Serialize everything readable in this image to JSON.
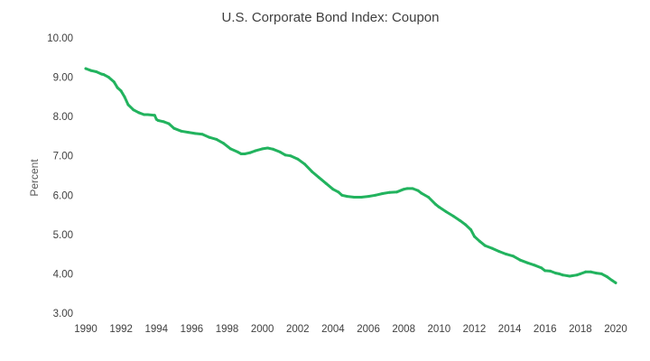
{
  "chart_data": {
    "type": "line",
    "title": "U.S. Corporate Bond Index: Coupon",
    "xlabel": "",
    "ylabel": "Percent",
    "xlim": [
      1990,
      2020
    ],
    "ylim": [
      3.0,
      10.0
    ],
    "x_ticks": [
      "1990",
      "1992",
      "1994",
      "1996",
      "1998",
      "2000",
      "2002",
      "2004",
      "2006",
      "2008",
      "2010",
      "2012",
      "2014",
      "2016",
      "2018",
      "2020"
    ],
    "y_ticks": [
      "3.00",
      "4.00",
      "5.00",
      "6.00",
      "7.00",
      "8.00",
      "9.00",
      "10.00"
    ],
    "grid": false,
    "legend": "none",
    "line_color": "#22b35e",
    "series": [
      {
        "x": [
          1990.0,
          1990.3,
          1990.6,
          1990.9,
          1991.0,
          1991.3,
          1991.6,
          1991.8,
          1992.0,
          1992.2,
          1992.4,
          1992.7,
          1993.0,
          1993.3,
          1993.5,
          1993.9,
          1994.0,
          1994.1,
          1994.4,
          1994.7,
          1995.0,
          1995.4,
          1995.8,
          1996.2,
          1996.6,
          1997.0,
          1997.4,
          1997.8,
          1998.2,
          1998.6,
          1998.8,
          1999.0,
          1999.3,
          1999.6,
          2000.0,
          2000.3,
          2000.6,
          2001.0,
          2001.3,
          2001.6,
          2002.0,
          2002.4,
          2002.8,
          2003.2,
          2003.6,
          2004.0,
          2004.3,
          2004.5,
          2004.8,
          2005.2,
          2005.6,
          2006.0,
          2006.4,
          2006.8,
          2007.2,
          2007.6,
          2008.0,
          2008.2,
          2008.5,
          2008.8,
          2009.0,
          2009.4,
          2009.8,
          2010.0,
          2010.4,
          2010.8,
          2011.2,
          2011.5,
          2011.8,
          2012.0,
          2012.3,
          2012.6,
          2013.0,
          2013.4,
          2013.8,
          2014.2,
          2014.6,
          2015.0,
          2015.4,
          2015.8,
          2016.0,
          2016.3,
          2016.6,
          2016.8,
          2017.0,
          2017.4,
          2017.8,
          2018.0,
          2018.3,
          2018.6,
          2018.9,
          2019.2,
          2019.5,
          2019.8,
          2020.0
        ],
        "y": [
          9.22,
          9.17,
          9.14,
          9.08,
          9.07,
          9.0,
          8.88,
          8.73,
          8.65,
          8.5,
          8.3,
          8.17,
          8.1,
          8.05,
          8.05,
          8.03,
          7.93,
          7.9,
          7.87,
          7.82,
          7.7,
          7.63,
          7.6,
          7.57,
          7.55,
          7.47,
          7.42,
          7.32,
          7.18,
          7.1,
          7.05,
          7.05,
          7.08,
          7.13,
          7.18,
          7.2,
          7.17,
          7.1,
          7.02,
          7.0,
          6.92,
          6.79,
          6.6,
          6.45,
          6.3,
          6.15,
          6.08,
          6.0,
          5.97,
          5.95,
          5.95,
          5.97,
          6.0,
          6.04,
          6.07,
          6.08,
          6.15,
          6.17,
          6.17,
          6.12,
          6.05,
          5.95,
          5.77,
          5.7,
          5.58,
          5.47,
          5.35,
          5.25,
          5.12,
          4.95,
          4.83,
          4.72,
          4.65,
          4.57,
          4.5,
          4.45,
          4.35,
          4.28,
          4.22,
          4.15,
          4.08,
          4.07,
          4.02,
          4.0,
          3.97,
          3.94,
          3.97,
          4.0,
          4.05,
          4.05,
          4.02,
          4.0,
          3.93,
          3.83,
          3.77
        ]
      }
    ]
  }
}
